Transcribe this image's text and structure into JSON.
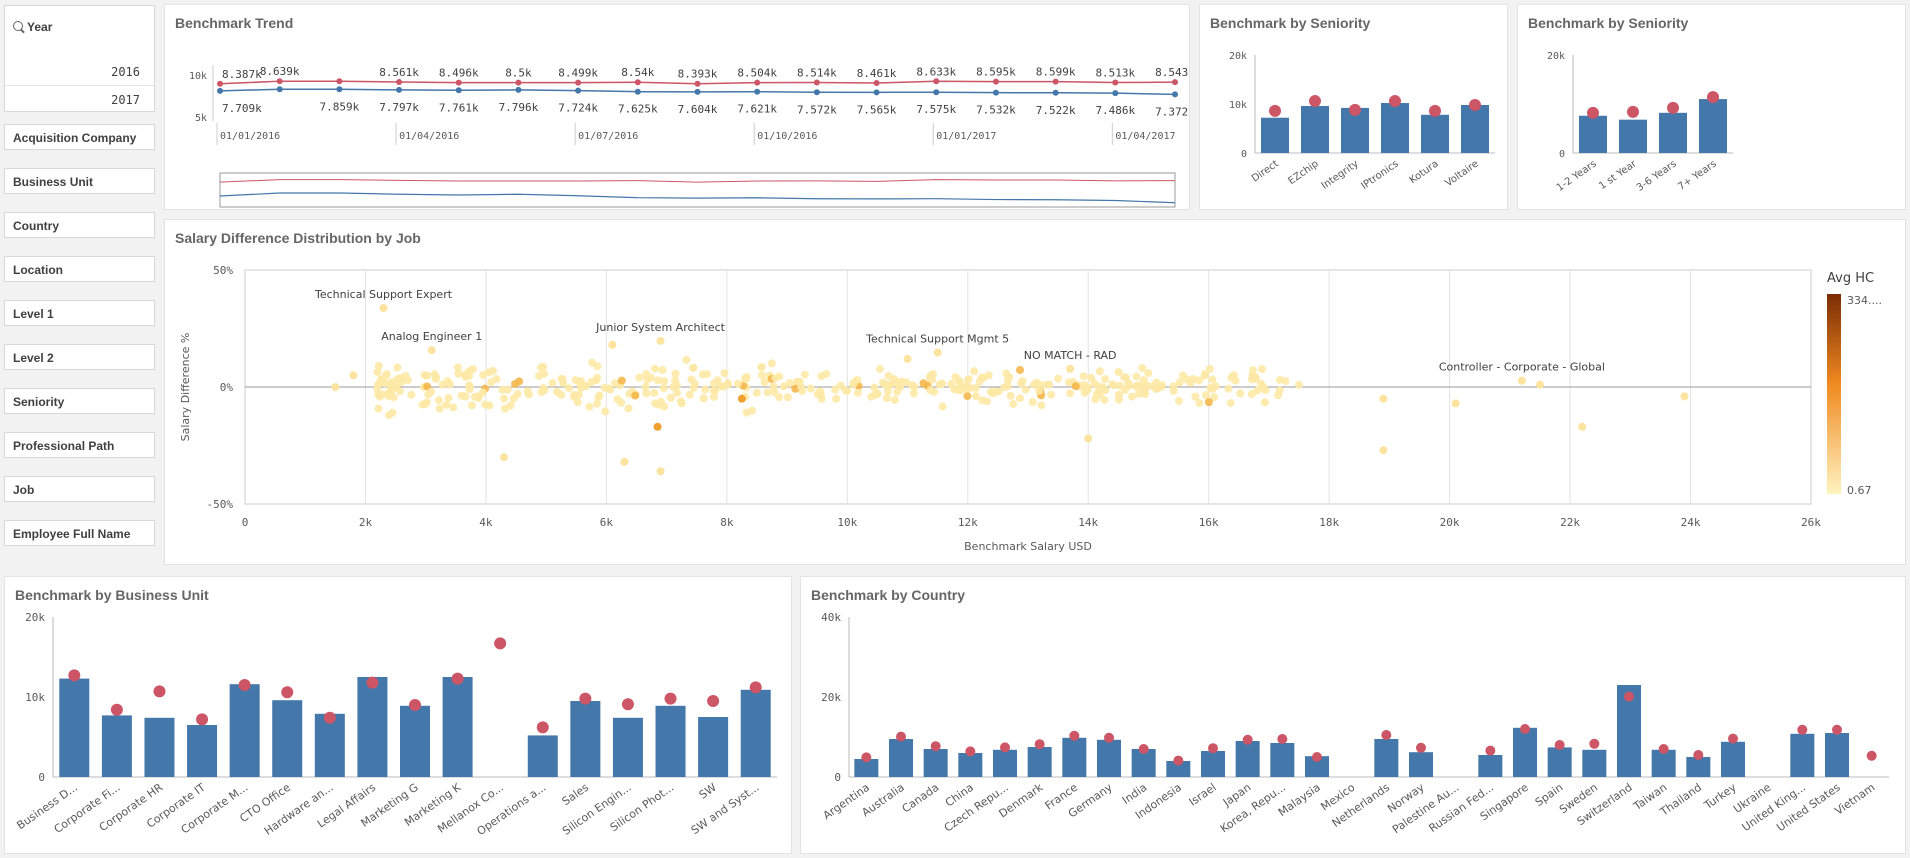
{
  "filters": {
    "year": {
      "label": "Year",
      "options": [
        "2016",
        "2017"
      ]
    },
    "items": [
      "Acquisition Company",
      "Business Unit",
      "Country",
      "Location",
      "Level 1",
      "Level 2",
      "Seniority",
      "Professional Path",
      "Job",
      "Employee Full Name"
    ]
  },
  "colors": {
    "bar": "#4477aa",
    "dot": "#cc5566",
    "line_red": "#cc5566",
    "line_blue": "#4477aa"
  },
  "trend": {
    "title": "Benchmark Trend",
    "chart_data": {
      "type": "line",
      "title": "Benchmark Trend",
      "x_tick_labels": [
        "01/01/2016",
        "01/04/2016",
        "01/07/2016",
        "01/10/2016",
        "01/01/2017",
        "01/04/2017"
      ],
      "y_ticks": [
        "10k",
        "5k"
      ],
      "x": [
        "01/01/2016",
        "01/02/2016",
        "01/03/2016",
        "01/04/2016",
        "01/05/2016",
        "01/06/2016",
        "01/07/2016",
        "01/08/2016",
        "01/09/2016",
        "01/10/2016",
        "01/11/2016",
        "01/12/2016",
        "01/01/2017",
        "01/02/2017",
        "01/03/2017",
        "01/04/2017",
        "01/05/2017"
      ],
      "series": [
        {
          "values": [
            8387,
            8639,
            8639,
            8561,
            8496,
            8500,
            8499,
            8540,
            8393,
            8504,
            8514,
            8461,
            8633,
            8595,
            8599,
            8513,
            8543
          ],
          "labels": [
            "8.387k",
            "8.639k",
            "",
            "8.561k",
            "8.496k",
            "8.5k",
            "8.499k",
            "8.54k",
            "8.393k",
            "8.504k",
            "8.514k",
            "8.461k",
            "8.633k",
            "8.595k",
            "8.599k",
            "8.513k",
            "8.543k"
          ]
        },
        {
          "values": [
            7709,
            7859,
            7859,
            7797,
            7761,
            7796,
            7724,
            7625,
            7604,
            7621,
            7572,
            7565,
            7575,
            7532,
            7522,
            7486,
            7372
          ],
          "labels": [
            "7.709k",
            "",
            "7.859k",
            "7.797k",
            "7.761k",
            "7.796k",
            "7.724k",
            "7.625k",
            "7.604k",
            "7.621k",
            "7.572k",
            "7.565k",
            "7.575k",
            "7.532k",
            "7.522k",
            "7.486k",
            "7.372k"
          ]
        }
      ]
    }
  },
  "seniority1": {
    "title": "Benchmark by Seniority",
    "chart_data": {
      "type": "bar",
      "categories": [
        "Direct",
        "EZchip",
        "Integrity",
        "IPtronics",
        "Kotura",
        "Voltaire"
      ],
      "values": [
        7200,
        9600,
        9200,
        10200,
        7800,
        9800
      ],
      "markers": [
        8600,
        10600,
        8800,
        10600,
        8600,
        9800
      ],
      "y_ticks": [
        "20k",
        "10k",
        "0"
      ],
      "ylim": [
        0,
        20000
      ]
    }
  },
  "seniority2": {
    "title": "Benchmark by Seniority",
    "chart_data": {
      "type": "bar",
      "categories": [
        "1-2 Years",
        "1 st Year",
        "3-6 Years",
        "7+ Years"
      ],
      "values": [
        7600,
        6800,
        8200,
        11000
      ],
      "markers": [
        8200,
        8400,
        9200,
        11400
      ],
      "y_ticks": [
        "20k",
        "0"
      ],
      "ylim": [
        0,
        20000
      ]
    }
  },
  "scatter": {
    "title": "Salary Difference Distribution by Job",
    "chart_data": {
      "type": "scatter",
      "title": "Salary Difference Distribution by Job",
      "xlabel": "Benchmark Salary USD",
      "ylabel": "Salary Difference %",
      "xlim": [
        0,
        26000
      ],
      "ylim": [
        -50,
        50
      ],
      "x_ticks": [
        "0",
        "2k",
        "4k",
        "6k",
        "8k",
        "10k",
        "12k",
        "14k",
        "16k",
        "18k",
        "20k",
        "22k",
        "24k",
        "26k"
      ],
      "y_ticks": [
        "50%",
        "0%",
        "-50%"
      ],
      "legend": {
        "title": "Avg HC",
        "max": "334....",
        "min": "0.67"
      },
      "annotations": [
        {
          "text": "Technical Support Expert",
          "x": 2300,
          "y": 38
        },
        {
          "text": "Analog Engineer 1",
          "x": 3100,
          "y": 20
        },
        {
          "text": "Junior System Architect",
          "x": 6900,
          "y": 24
        },
        {
          "text": "Technical Support Mgmt 5",
          "x": 11500,
          "y": 19
        },
        {
          "text": "NO MATCH - RAD",
          "x": 13700,
          "y": 12
        },
        {
          "text": "Controller - Corporate - Global",
          "x": 21200,
          "y": 7
        }
      ],
      "outliers": [
        {
          "x": 1500,
          "y": 0
        },
        {
          "x": 1800,
          "y": 5
        },
        {
          "x": 4300,
          "y": -30
        },
        {
          "x": 6300,
          "y": -32
        },
        {
          "x": 6900,
          "y": -36
        },
        {
          "x": 6100,
          "y": 18
        },
        {
          "x": 18900,
          "y": -27
        },
        {
          "x": 18900,
          "y": -5
        },
        {
          "x": 20100,
          "y": -7
        },
        {
          "x": 21500,
          "y": 1
        },
        {
          "x": 22200,
          "y": -17
        },
        {
          "x": 23900,
          "y": -4
        },
        {
          "x": 11000,
          "y": 12
        },
        {
          "x": 14000,
          "y": -22
        }
      ],
      "dense_points_range": {
        "x": [
          2200,
          17500
        ],
        "y": [
          -18,
          14
        ],
        "count": 420
      }
    }
  },
  "bu": {
    "title": "Benchmark by Business Unit",
    "chart_data": {
      "type": "bar",
      "categories": [
        "Business D...",
        "Corporate Fi...",
        "Corporate HR",
        "Corporate IT",
        "Corporate M...",
        "CTO Office",
        "Hardware an...",
        "Legal Affairs",
        "Marketing G",
        "Marketing K",
        "Mellanox Co...",
        "Operations a...",
        "Sales",
        "Silicon Engin...",
        "Silicon Phot...",
        "SW",
        "SW and Syst..."
      ],
      "values": [
        12300,
        7700,
        7400,
        6500,
        11600,
        9600,
        7900,
        12500,
        8900,
        12500,
        null,
        5200,
        9500,
        7400,
        8900,
        7500,
        10900
      ],
      "markers": [
        12700,
        8400,
        10700,
        7200,
        11500,
        10600,
        7400,
        11800,
        9000,
        12300,
        16700,
        6200,
        9800,
        9100,
        9800,
        9500,
        11200
      ],
      "y_ticks": [
        "20k",
        "10k",
        "0"
      ],
      "ylim": [
        0,
        20000
      ]
    }
  },
  "country": {
    "title": "Benchmark by Country",
    "chart_data": {
      "type": "bar",
      "categories": [
        "Argentina",
        "Australia",
        "Canada",
        "China",
        "Czech Repu...",
        "Denmark",
        "France",
        "Germany",
        "India",
        "Indonesia",
        "Israel",
        "Japan",
        "Korea, Repu...",
        "Malaysia",
        "Mexico",
        "Netherlands",
        "Norway",
        "Palestine Au...",
        "Russian Fed...",
        "Singapore",
        "Spain",
        "Sweden",
        "Switzerland",
        "Taiwan",
        "Thailand",
        "Turkey",
        "Ukraine",
        "United King...",
        "United States",
        "Vietnam"
      ],
      "values": [
        4500,
        9500,
        7000,
        6000,
        6800,
        7500,
        9800,
        9300,
        7000,
        4000,
        6500,
        9000,
        8500,
        5200,
        null,
        9500,
        6200,
        null,
        5500,
        12300,
        7400,
        6800,
        23000,
        6800,
        5000,
        8800,
        null,
        10800,
        11000,
        null
      ],
      "markers": [
        4900,
        10100,
        7700,
        6400,
        7400,
        8200,
        10300,
        9800,
        7000,
        4100,
        7200,
        9300,
        9500,
        5000,
        null,
        10500,
        7300,
        null,
        6600,
        12000,
        8000,
        8300,
        20100,
        7000,
        5500,
        9600,
        null,
        11800,
        11800,
        5300
      ],
      "y_ticks": [
        "40k",
        "20k",
        "0"
      ],
      "ylim": [
        0,
        40000
      ]
    }
  }
}
